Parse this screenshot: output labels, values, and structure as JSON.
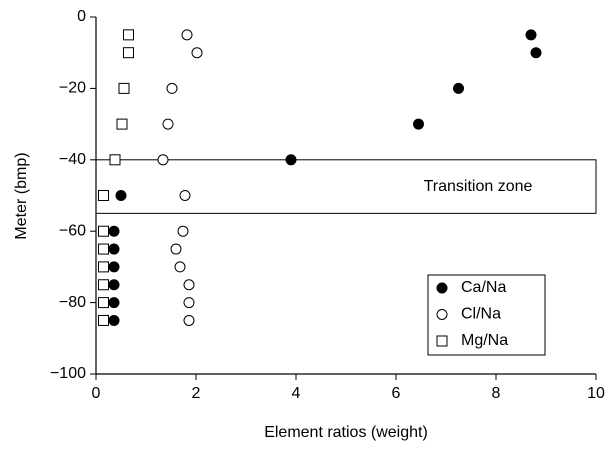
{
  "chart_data": {
    "type": "scatter",
    "xlabel": "Element ratios (weight)",
    "ylabel": "Meter (bmp)",
    "xlim": [
      0,
      10
    ],
    "xticks": [
      0,
      2,
      4,
      6,
      8,
      10
    ],
    "ylim": [
      -100,
      0
    ],
    "yticks": [
      0,
      {
        "value": -20,
        "label": "−20"
      },
      {
        "value": -40,
        "label": "−40"
      },
      {
        "value": -60,
        "label": "−60"
      },
      {
        "value": -80,
        "label": "−80"
      },
      {
        "value": -100,
        "label": "−100"
      }
    ],
    "legend": "lower right",
    "annotation": {
      "text": "Transition zone",
      "y": [
        -40,
        -55
      ]
    },
    "series": [
      {
        "name": "Ca/Na",
        "color": "#000000",
        "marker": "filled-circle",
        "x": [
          8.7,
          8.8,
          7.25,
          6.45,
          3.9,
          0.5,
          0.36,
          0.36,
          0.36,
          0.36,
          0.36,
          0.36
        ],
        "values": [
          -5,
          -10,
          -20,
          -30,
          -40,
          -50,
          -60,
          -65,
          -70,
          -75,
          -80,
          -85
        ]
      },
      {
        "name": "Cl/Na",
        "color": "#000000",
        "marker": "open-circle",
        "x": [
          1.82,
          2.02,
          1.52,
          1.44,
          1.34,
          1.78,
          1.74,
          1.6,
          1.68,
          1.86,
          1.86,
          1.86
        ],
        "values": [
          -5,
          -10,
          -20,
          -30,
          -40,
          -50,
          -60,
          -65,
          -70,
          -75,
          -80,
          -85
        ]
      },
      {
        "name": "Mg/Na",
        "color": "#000000",
        "marker": "open-square",
        "x": [
          0.65,
          0.65,
          0.56,
          0.52,
          0.38,
          0.15,
          0.15,
          0.15,
          0.15,
          0.15,
          0.15,
          0.15
        ],
        "values": [
          -5,
          -10,
          -20,
          -30,
          -40,
          -50,
          -60,
          -65,
          -70,
          -75,
          -80,
          -85
        ]
      }
    ]
  }
}
